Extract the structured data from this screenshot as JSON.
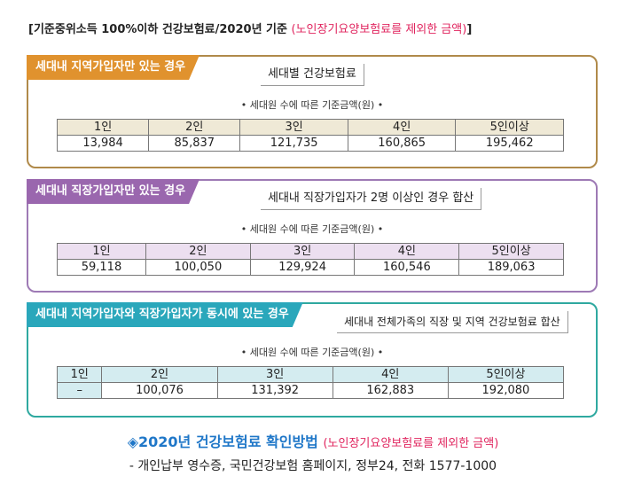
{
  "header": {
    "main": "[기준중위소득 100%이하 건강보험료/2020년 기준",
    "note": "(노인장기요양보험료를 제외한 금액)",
    "close": "]"
  },
  "caption": "• 세대원 수에 따른 기준금액(원) •",
  "headers": [
    "1인",
    "2인",
    "3인",
    "4인",
    "5인이상"
  ],
  "sections": [
    {
      "tag": "세대내 지역가입자만 있는 경우",
      "subtitle": "세대별 건강보험료",
      "values": [
        "13,984",
        "85,837",
        "121,735",
        "160,865",
        "195,462"
      ],
      "color": "#e0922e"
    },
    {
      "tag": "세대내 직장가입자만 있는 경우",
      "subtitle": "세대내 직장가입자가 2명 이상인 경우 합산",
      "values": [
        "59,118",
        "100,050",
        "129,924",
        "160,546",
        "189,063"
      ],
      "color": "#9a67ae"
    },
    {
      "tag": "세대내 지역가입자와 직장가입자가 동시에 있는 경우",
      "subtitle": "세대내 전체가족의 직장 및 지역 건강보험료 합산",
      "values": [
        "–",
        "100,076",
        "131,392",
        "162,883",
        "192,080"
      ],
      "color": "#2aa7bb"
    }
  ],
  "footer": {
    "title": "◈2020년 건강보험료 확인방법",
    "note": "(노인장기요양보험료를 제외한 금액)",
    "line": "- 개인납부 영수증, 국민건강보험 홈페이지, 정부24, 전화 1577-1000"
  }
}
